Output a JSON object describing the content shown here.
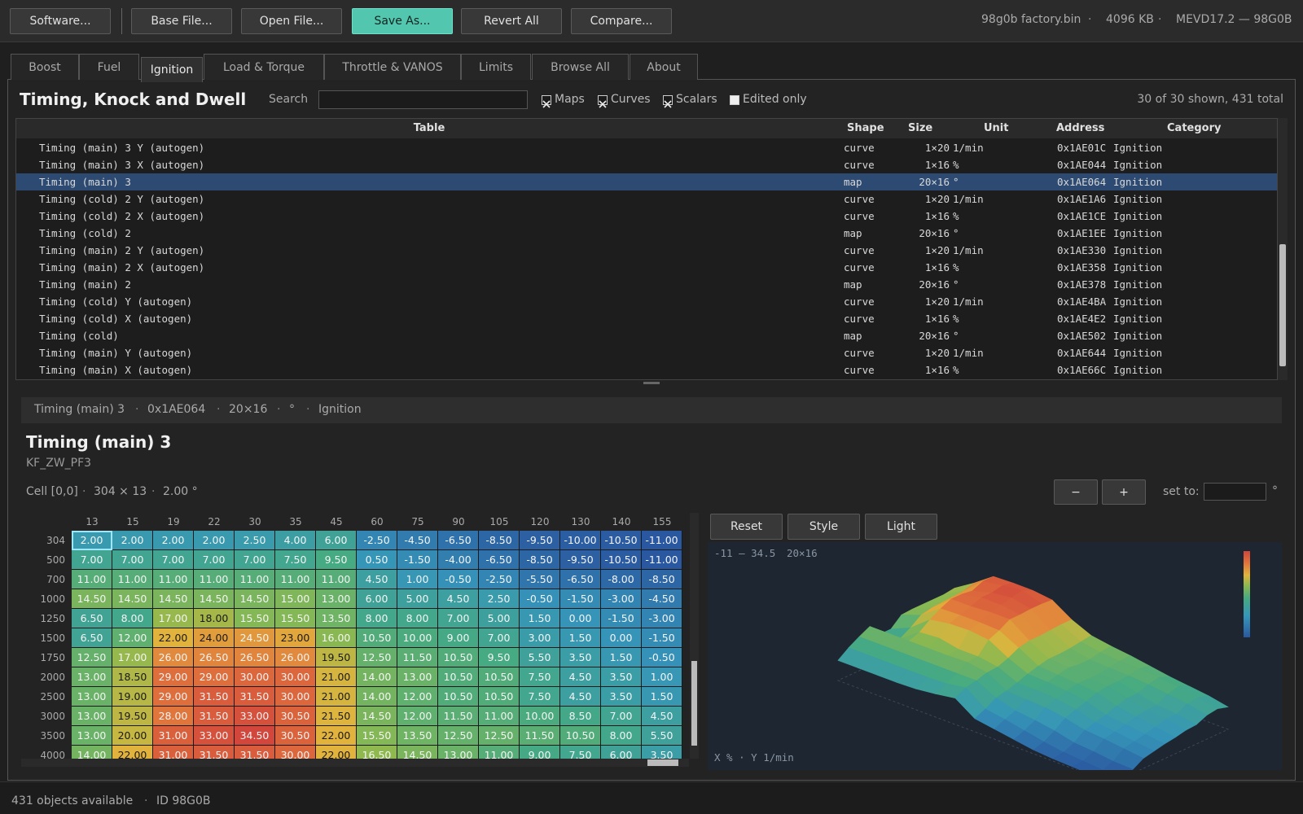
{
  "separator": "·",
  "toolbar": {
    "buttons": [
      "Software...",
      "Base File...",
      "Open File...",
      "Save As...",
      "Revert All",
      "Compare..."
    ],
    "primary_button": 3,
    "file_info": [
      "98g0b factory.bin",
      "4096 KB",
      "MEVD17.2 — 98G0B"
    ]
  },
  "tabs": {
    "items": [
      "Boost",
      "Fuel",
      "Ignition",
      "Load & Torque",
      "Throttle & VANOS",
      "Limits",
      "Browse All",
      "About"
    ],
    "active": 2
  },
  "panel": {
    "title": "Timing, Knock and Dwell",
    "search_label": "Search",
    "filters": [
      {
        "label": "Maps",
        "checked": true
      },
      {
        "label": "Curves",
        "checked": true
      },
      {
        "label": "Scalars",
        "checked": true
      },
      {
        "label": "Edited only",
        "checked": false
      }
    ],
    "count": "30 of 30 shown, 431 total"
  },
  "table": {
    "headers": [
      "Table",
      "Shape",
      "Size",
      "Unit",
      "Address",
      "Category"
    ],
    "selected_row": 2,
    "rows": [
      [
        "Timing (main) 3 Y (autogen)",
        "curve",
        "1×20",
        "1/min",
        "0x1AE01C",
        "Ignition"
      ],
      [
        "Timing (main) 3 X (autogen)",
        "curve",
        "1×16",
        "%",
        "0x1AE044",
        "Ignition"
      ],
      [
        "Timing (main) 3",
        "map",
        "20×16",
        "°",
        "0x1AE064",
        "Ignition"
      ],
      [
        "Timing (cold) 2 Y (autogen)",
        "curve",
        "1×20",
        "1/min",
        "0x1AE1A6",
        "Ignition"
      ],
      [
        "Timing (cold) 2 X (autogen)",
        "curve",
        "1×16",
        "%",
        "0x1AE1CE",
        "Ignition"
      ],
      [
        "Timing (cold) 2",
        "map",
        "20×16",
        "°",
        "0x1AE1EE",
        "Ignition"
      ],
      [
        "Timing (main) 2 Y (autogen)",
        "curve",
        "1×20",
        "1/min",
        "0x1AE330",
        "Ignition"
      ],
      [
        "Timing (main) 2 X (autogen)",
        "curve",
        "1×16",
        "%",
        "0x1AE358",
        "Ignition"
      ],
      [
        "Timing (main) 2",
        "map",
        "20×16",
        "°",
        "0x1AE378",
        "Ignition"
      ],
      [
        "Timing (cold) Y (autogen)",
        "curve",
        "1×20",
        "1/min",
        "0x1AE4BA",
        "Ignition"
      ],
      [
        "Timing (cold) X (autogen)",
        "curve",
        "1×16",
        "%",
        "0x1AE4E2",
        "Ignition"
      ],
      [
        "Timing (cold)",
        "map",
        "20×16",
        "°",
        "0x1AE502",
        "Ignition"
      ],
      [
        "Timing (main) Y (autogen)",
        "curve",
        "1×20",
        "1/min",
        "0x1AE644",
        "Ignition"
      ],
      [
        "Timing (main) X (autogen)",
        "curve",
        "1×16",
        "%",
        "0x1AE66C",
        "Ignition"
      ]
    ]
  },
  "detail": {
    "crumbs": [
      "Timing (main) 3",
      "0x1AE064",
      "20×16",
      "°",
      "Ignition"
    ],
    "title": "Timing (main) 3",
    "subtitle": "KF_ZW_PF3",
    "cell_info": [
      "Cell [0,0]",
      "304 × 13",
      "2.00 °"
    ],
    "minus": "−",
    "plus": "+",
    "set_to": "set to:",
    "unit": "°"
  },
  "grid": {
    "columns": [
      "13",
      "15",
      "19",
      "22",
      "30",
      "35",
      "45",
      "60",
      "75",
      "90",
      "105",
      "120",
      "130",
      "140",
      "155"
    ],
    "rows": [
      "304",
      "500",
      "700",
      "1000",
      "1250",
      "1500",
      "1750",
      "2000",
      "2500",
      "3000",
      "3500",
      "4000"
    ],
    "selected_cell": [
      0,
      0
    ],
    "cells": [
      [
        "2.00",
        "2.00",
        "2.00",
        "2.00",
        "2.50",
        "4.00",
        "6.00",
        "-2.50",
        "-4.50",
        "-6.50",
        "-8.50",
        "-9.50",
        "-10.00",
        "-10.50",
        "-11.00"
      ],
      [
        "7.00",
        "7.00",
        "7.00",
        "7.00",
        "7.00",
        "7.50",
        "9.50",
        "0.50",
        "-1.50",
        "-4.00",
        "-6.50",
        "-8.50",
        "-9.50",
        "-10.50",
        "-11.00"
      ],
      [
        "11.00",
        "11.00",
        "11.00",
        "11.00",
        "11.00",
        "11.00",
        "11.00",
        "4.50",
        "1.00",
        "-0.50",
        "-2.50",
        "-5.50",
        "-6.50",
        "-8.00",
        "-8.50"
      ],
      [
        "14.50",
        "14.50",
        "14.50",
        "14.50",
        "14.50",
        "15.00",
        "13.00",
        "6.00",
        "5.00",
        "4.50",
        "2.50",
        "-0.50",
        "-1.50",
        "-3.00",
        "-4.50"
      ],
      [
        "6.50",
        "8.00",
        "17.00",
        "18.00",
        "15.50",
        "15.50",
        "13.50",
        "8.00",
        "8.00",
        "7.00",
        "5.00",
        "1.50",
        "0.00",
        "-1.50",
        "-3.00"
      ],
      [
        "6.50",
        "12.00",
        "22.00",
        "24.00",
        "24.50",
        "23.00",
        "16.00",
        "10.50",
        "10.00",
        "9.00",
        "7.00",
        "3.00",
        "1.50",
        "0.00",
        "-1.50"
      ],
      [
        "12.50",
        "17.00",
        "26.00",
        "26.50",
        "26.50",
        "26.00",
        "19.50",
        "12.50",
        "11.50",
        "10.50",
        "9.50",
        "5.50",
        "3.50",
        "1.50",
        "-0.50"
      ],
      [
        "13.00",
        "18.50",
        "29.00",
        "29.00",
        "30.00",
        "30.00",
        "21.00",
        "14.00",
        "13.00",
        "10.50",
        "10.50",
        "7.50",
        "4.50",
        "3.50",
        "1.00"
      ],
      [
        "13.00",
        "19.00",
        "29.00",
        "31.50",
        "31.50",
        "30.00",
        "21.00",
        "14.00",
        "12.00",
        "10.50",
        "10.50",
        "7.50",
        "4.50",
        "3.50",
        "1.50"
      ],
      [
        "13.00",
        "19.50",
        "28.00",
        "31.50",
        "33.00",
        "30.50",
        "21.50",
        "14.50",
        "12.00",
        "11.50",
        "11.00",
        "10.00",
        "8.50",
        "7.00",
        "4.50"
      ],
      [
        "13.00",
        "20.00",
        "31.00",
        "33.00",
        "34.50",
        "30.50",
        "22.00",
        "15.50",
        "13.50",
        "12.50",
        "12.50",
        "11.50",
        "10.50",
        "8.00",
        "5.50"
      ],
      [
        "14.00",
        "22.00",
        "31.00",
        "31.50",
        "31.50",
        "30.00",
        "22.00",
        "16.50",
        "14.50",
        "13.00",
        "11.00",
        "9.00",
        "7.50",
        "6.00",
        "3.50"
      ]
    ]
  },
  "view": {
    "buttons": [
      "Reset",
      "Style",
      "Light"
    ],
    "range": "-11 — 34.5",
    "size": "20×16",
    "axes": "X % · Y 1/min"
  },
  "status": [
    "431 objects available",
    "ID 98G0B"
  ]
}
